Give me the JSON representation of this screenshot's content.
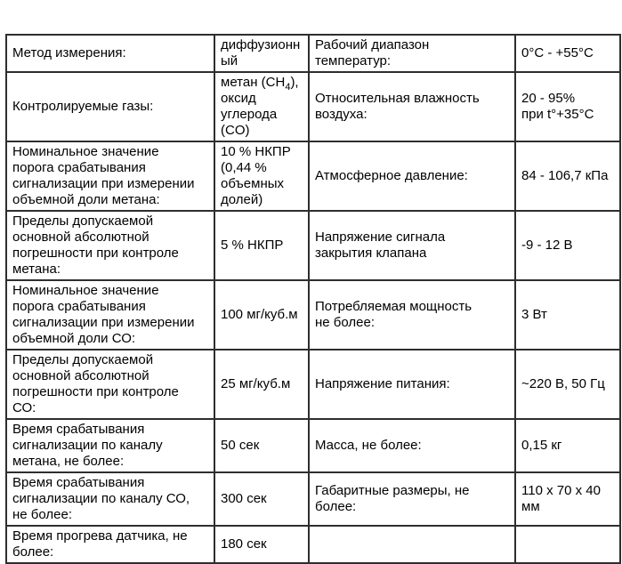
{
  "colors": {
    "background": "#ffffff",
    "border": "#2e2e2e",
    "text": "#000000"
  },
  "rows": [
    {
      "c1": "Метод измерения:",
      "c2": "диффузионн\nый",
      "c3": "Рабочий диапазон\nтемператур:",
      "c4": "0°С - +55°С"
    },
    {
      "c1": "Контролируемые газы:",
      "c2_parts": {
        "pre": "метан (CH",
        "sub": "4",
        "post": "),\nоксид\nуглерода\n(CO)"
      },
      "c3": "Относительная влажность\nвоздуха:",
      "c4": "20 - 95%\nпри t°+35°С"
    },
    {
      "c1": "Номинальное значение\nпорога срабатывания\nсигнализации при измерении\nобъемной доли метана:",
      "c2": "10 % НКПР\n(0,44 %\nобъемных\nдолей)",
      "c3": "Атмосферное давление:",
      "c4": "84 - 106,7 кПа"
    },
    {
      "c1": "Пределы допускаемой\nосновной абсолютной\nпогрешности при контроле\nметана:",
      "c2": "5 % НКПР",
      "c3": "Напряжение сигнала\nзакрытия клапана",
      "c4": "-9 - 12 В"
    },
    {
      "c1": "Номинальное значение\nпорога срабатывания\nсигнализации при измерении\nобъемной доли СО:",
      "c2": "100 мг/куб.м",
      "c3": "Потребляемая мощность\nне более:",
      "c4": "3 Вт"
    },
    {
      "c1": "Пределы допускаемой\nосновной абсолютной\nпогрешности при контроле\nСО:",
      "c2": "25 мг/куб.м",
      "c3": "Напряжение питания:",
      "c4": "~220 В, 50 Гц"
    },
    {
      "c1": "Время срабатывания\nсигнализации по каналу\nметана, не более:",
      "c2": "50 сек",
      "c3": "Масса, не более:",
      "c4": "0,15 кг"
    },
    {
      "c1": "Время срабатывания\nсигнализации по каналу СО,\nне более:",
      "c2": "300 сек",
      "c3": "Габаритные размеры, не\nболее:",
      "c4": "110 x 70 x 40\nмм"
    },
    {
      "c1": "Время прогрева датчика, не\nболее:",
      "c2": "180 сек",
      "c3": "",
      "c4": ""
    }
  ]
}
